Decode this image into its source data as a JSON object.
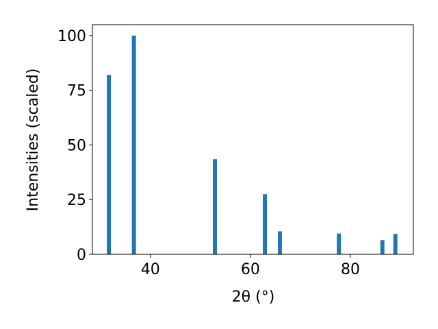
{
  "chart_data": {
    "type": "bar",
    "xlabel": "2θ (°)",
    "ylabel": "Intensities (scaled)",
    "x": [
      31.7,
      36.7,
      52.9,
      62.9,
      65.9,
      77.7,
      86.4,
      89.0
    ],
    "values": [
      82,
      100,
      43.5,
      27.5,
      10.5,
      9.5,
      6.5,
      9.3
    ],
    "color": "#1f77b4",
    "xlim": [
      28.4,
      92.6
    ],
    "xticks": [
      40,
      60,
      80
    ],
    "ylim": [
      0,
      105
    ],
    "yticks": [
      0,
      25,
      50,
      75,
      100
    ],
    "grid": false
  }
}
